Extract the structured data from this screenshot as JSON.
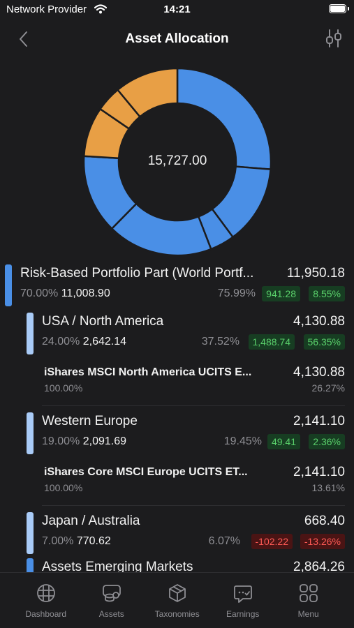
{
  "status_bar": {
    "carrier": "Network Provider",
    "time": "14:21"
  },
  "nav": {
    "title": "Asset Allocation",
    "back_icon": "chevron-left-icon",
    "filter_icon": "sliders-icon"
  },
  "chart_data": {
    "type": "donut",
    "center_label": "15,727.00",
    "values": [
      4130.88,
      2141.1,
      668.4,
      2864.26,
      2145.54,
      1350.65,
      695.97,
      1730.2
    ],
    "colors": [
      "#4a8fe6",
      "#4a8fe6",
      "#4a8fe6",
      "#4a8fe6",
      "#4a8fe6",
      "#e89f45",
      "#e89f45",
      "#e89f45"
    ]
  },
  "allocation": {
    "group": {
      "name": "Risk-Based Portfolio Part (World Portf...",
      "value": "11,950.18",
      "target_pct": "70.00%",
      "target_value": "11,008.90",
      "actual_pct": "75.99%",
      "delta_abs": "941.28",
      "delta_pct": "8.55%",
      "color": "#4a8fe6"
    },
    "usa": {
      "name": "USA / North America",
      "value": "4,130.88",
      "target_pct": "24.00%",
      "target_value": "2,642.14",
      "actual_pct": "37.52%",
      "delta_abs": "1,488.74",
      "delta_pct": "56.35%",
      "color": "#a9cbf7"
    },
    "usa_security": {
      "name": "iShares MSCI North America UCITS E...",
      "value": "4,130.88",
      "pct": "100.00%",
      "share": "26.27%"
    },
    "europe": {
      "name": "Western Europe",
      "value": "2,141.10",
      "target_pct": "19.00%",
      "target_value": "2,091.69",
      "actual_pct": "19.45%",
      "delta_abs": "49.41",
      "delta_pct": "2.36%",
      "color": "#a9cbf7"
    },
    "europe_security": {
      "name": "iShares Core MSCI Europe UCITS ET...",
      "value": "2,141.10",
      "pct": "100.00%",
      "share": "13.61%"
    },
    "japan": {
      "name": "Japan / Australia",
      "value": "668.40",
      "target_pct": "7.00%",
      "target_value": "770.62",
      "actual_pct": "6.07%",
      "delta_abs": "-102.22",
      "delta_pct": "-13.26%",
      "color": "#a9cbf7"
    },
    "emerging": {
      "name": "Assets Emerging Markets",
      "value": "2,864.26",
      "color": "#4a8fe6"
    }
  },
  "tabs": [
    {
      "label": "Dashboard",
      "icon": "grid-icon"
    },
    {
      "label": "Assets",
      "icon": "coins-icon"
    },
    {
      "label": "Taxonomies",
      "icon": "cube-icon"
    },
    {
      "label": "Earnings",
      "icon": "earnings-icon"
    },
    {
      "label": "Menu",
      "icon": "apps-icon"
    }
  ]
}
